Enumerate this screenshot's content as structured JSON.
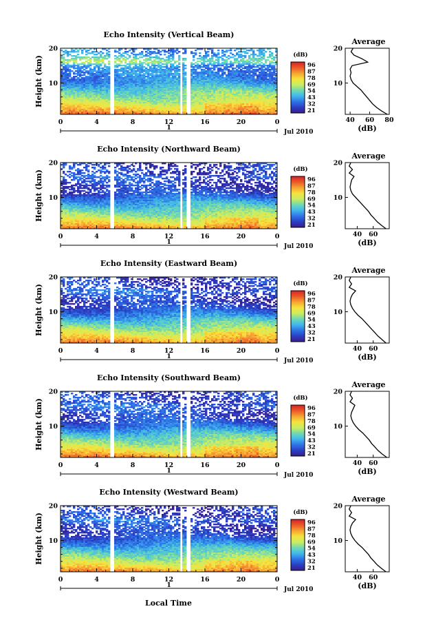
{
  "figure": {
    "xlabel": "Local Time",
    "date_label": "Jul 2010",
    "day_label": "1",
    "colorbar_unit": "(dB)",
    "colorbar_ticks": [
      "96",
      "87",
      "78",
      "69",
      "54",
      "43",
      "32",
      "21"
    ],
    "colors": {
      "ramp": [
        "#3a1e8c",
        "#2b3fc4",
        "#2f74e8",
        "#41b8ea",
        "#6fd9b4",
        "#c9ee63",
        "#f7e33c",
        "#f6a431",
        "#ea5a28",
        "#d92127"
      ]
    }
  },
  "chart_data": [
    {
      "type": "heatmap",
      "title": "Echo Intensity (Vertical Beam)",
      "xlabel": "",
      "ylabel": "Height (km)",
      "x_ticks": [
        "0",
        "4",
        "8",
        "12",
        "16",
        "20",
        "0"
      ],
      "y_ticks": [
        "20",
        "10"
      ],
      "xlim": [
        0,
        24
      ],
      "ylim": [
        1,
        20
      ],
      "data_gaps_hours": [
        [
          5.6,
          5.9
        ],
        [
          13.2,
          13.45
        ],
        [
          14.0,
          14.3
        ]
      ],
      "value_range_db": [
        21,
        96
      ],
      "profile": {
        "title": "Average",
        "xlabel": "(dB)",
        "ylabel": "",
        "x_ticks": [
          "40",
          "60",
          "80"
        ],
        "y_ticks": [
          "20",
          "10"
        ],
        "xlim": [
          35,
          80
        ],
        "ylim": [
          1,
          20
        ],
        "height": [
          1,
          2,
          3,
          4,
          5,
          6,
          7,
          8,
          9,
          10,
          11,
          12,
          13,
          14,
          15,
          16,
          17,
          18,
          19,
          20
        ],
        "db": [
          78,
          72,
          67,
          63,
          60,
          57,
          54,
          51,
          47,
          43,
          41,
          40,
          41,
          40,
          42,
          58,
          52,
          44,
          41,
          43
        ]
      }
    },
    {
      "type": "heatmap",
      "title": "Echo Intensity (Northward Beam)",
      "xlabel": "",
      "ylabel": "Height (km)",
      "x_ticks": [
        "0",
        "4",
        "8",
        "12",
        "16",
        "20",
        "0"
      ],
      "y_ticks": [
        "20",
        "10"
      ],
      "xlim": [
        0,
        24
      ],
      "ylim": [
        1,
        20
      ],
      "data_gaps_hours": [
        [
          5.6,
          5.9
        ],
        [
          13.2,
          13.45
        ],
        [
          14.0,
          14.3
        ]
      ],
      "value_range_db": [
        21,
        96
      ],
      "profile": {
        "title": "Average",
        "xlabel": "(dB)",
        "ylabel": "",
        "x_ticks": [
          "40",
          "60"
        ],
        "y_ticks": [
          "20",
          "10"
        ],
        "xlim": [
          25,
          80
        ],
        "ylim": [
          1,
          20
        ],
        "height": [
          1,
          2,
          3,
          4,
          5,
          6,
          7,
          8,
          9,
          10,
          11,
          12,
          13,
          14,
          15,
          16,
          17,
          18,
          19,
          20
        ],
        "db": [
          76,
          70,
          65,
          61,
          57,
          54,
          50,
          46,
          42,
          38,
          34,
          32,
          31,
          32,
          33,
          36,
          30,
          34,
          30,
          32
        ]
      }
    },
    {
      "type": "heatmap",
      "title": "Echo Intensity (Eastward Beam)",
      "xlabel": "",
      "ylabel": "Height (km)",
      "x_ticks": [
        "0",
        "4",
        "8",
        "12",
        "16",
        "20",
        "0"
      ],
      "y_ticks": [
        "20",
        "10"
      ],
      "xlim": [
        0,
        24
      ],
      "ylim": [
        1,
        20
      ],
      "data_gaps_hours": [
        [
          5.6,
          5.9
        ],
        [
          13.2,
          13.45
        ],
        [
          14.0,
          14.3
        ]
      ],
      "value_range_db": [
        21,
        96
      ],
      "profile": {
        "title": "Average",
        "xlabel": "(dB)",
        "ylabel": "",
        "x_ticks": [
          "40",
          "60"
        ],
        "y_ticks": [
          "20",
          "10"
        ],
        "xlim": [
          25,
          80
        ],
        "ylim": [
          1,
          20
        ],
        "height": [
          1,
          2,
          3,
          4,
          5,
          6,
          7,
          8,
          9,
          10,
          11,
          12,
          13,
          14,
          15,
          16,
          17,
          18,
          19,
          20
        ],
        "db": [
          76,
          71,
          66,
          62,
          58,
          54,
          50,
          46,
          41,
          37,
          34,
          32,
          31,
          32,
          34,
          38,
          30,
          33,
          30,
          32
        ]
      }
    },
    {
      "type": "heatmap",
      "title": "Echo Intensity (Southward Beam)",
      "xlabel": "",
      "ylabel": "Height (km)",
      "x_ticks": [
        "0",
        "4",
        "8",
        "12",
        "16",
        "20",
        "0"
      ],
      "y_ticks": [
        "20",
        "10"
      ],
      "xlim": [
        0,
        24
      ],
      "ylim": [
        1,
        20
      ],
      "data_gaps_hours": [
        [
          5.6,
          5.9
        ],
        [
          13.2,
          13.45
        ],
        [
          14.0,
          14.3
        ]
      ],
      "value_range_db": [
        21,
        96
      ],
      "profile": {
        "title": "Average",
        "xlabel": "(dB)",
        "ylabel": "",
        "x_ticks": [
          "40",
          "60"
        ],
        "y_ticks": [
          "20",
          "10"
        ],
        "xlim": [
          25,
          80
        ],
        "ylim": [
          1,
          20
        ],
        "height": [
          1,
          2,
          3,
          4,
          5,
          6,
          7,
          8,
          9,
          10,
          11,
          12,
          13,
          14,
          15,
          16,
          17,
          18,
          19,
          20
        ],
        "db": [
          77,
          71,
          66,
          62,
          58,
          55,
          51,
          47,
          42,
          38,
          35,
          33,
          32,
          33,
          35,
          37,
          31,
          34,
          31,
          33
        ]
      }
    },
    {
      "type": "heatmap",
      "title": "Echo Intensity (Westward Beam)",
      "xlabel": "",
      "ylabel": "Height (km)",
      "x_ticks": [
        "0",
        "4",
        "8",
        "12",
        "16",
        "20",
        "0"
      ],
      "y_ticks": [
        "20",
        "10"
      ],
      "xlim": [
        0,
        24
      ],
      "ylim": [
        1,
        20
      ],
      "data_gaps_hours": [
        [
          5.6,
          5.9
        ],
        [
          13.2,
          13.45
        ],
        [
          14.0,
          14.3
        ]
      ],
      "value_range_db": [
        21,
        96
      ],
      "profile": {
        "title": "Average",
        "xlabel": "(dB)",
        "ylabel": "",
        "x_ticks": [
          "40",
          "60"
        ],
        "y_ticks": [
          "20",
          "10"
        ],
        "xlim": [
          25,
          80
        ],
        "ylim": [
          1,
          20
        ],
        "height": [
          1,
          2,
          3,
          4,
          5,
          6,
          7,
          8,
          9,
          10,
          11,
          12,
          13,
          14,
          15,
          16,
          17,
          18,
          19,
          20
        ],
        "db": [
          76,
          70,
          65,
          61,
          57,
          54,
          50,
          46,
          41,
          37,
          34,
          32,
          31,
          32,
          34,
          38,
          30,
          33,
          30,
          32
        ]
      }
    }
  ]
}
